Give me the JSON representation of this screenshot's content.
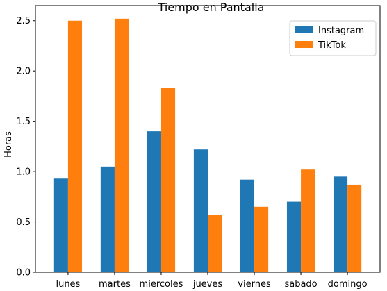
{
  "chart_data": {
    "type": "bar",
    "title": "Tiempo en Pantalla",
    "xlabel": "",
    "ylabel": "Horas",
    "ylim": [
      0,
      2.65
    ],
    "yticks": [
      0.0,
      0.5,
      1.0,
      1.5,
      2.0,
      2.5
    ],
    "ytick_labels": [
      "0.0",
      "0.5",
      "1.0",
      "1.5",
      "2.0",
      "2.5"
    ],
    "categories": [
      "lunes",
      "martes",
      "miercoles",
      "jueves",
      "viernes",
      "sabado",
      "domingo"
    ],
    "series": [
      {
        "name": "Instagram",
        "color": "#1f77b4",
        "values": [
          0.93,
          1.05,
          1.4,
          1.22,
          0.92,
          0.7,
          0.95
        ]
      },
      {
        "name": "TikTok",
        "color": "#ff7f0e",
        "values": [
          2.5,
          2.52,
          1.83,
          0.57,
          0.65,
          1.02,
          0.87
        ]
      }
    ],
    "legend_position": "top-right",
    "grid": false
  }
}
